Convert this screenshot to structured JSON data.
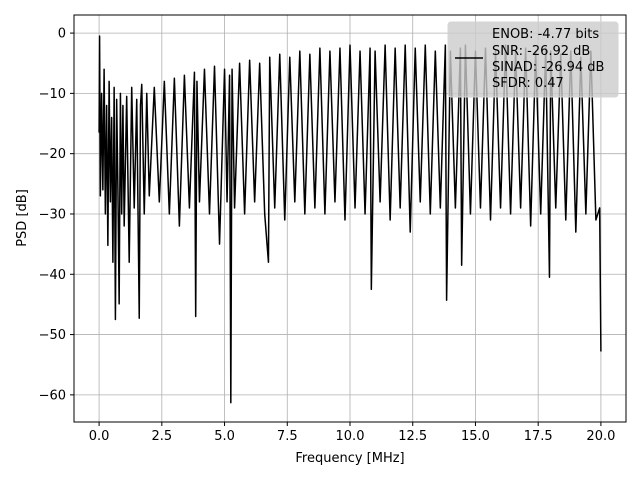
{
  "chart_data": {
    "type": "line",
    "title": "",
    "xlabel": "Frequency [MHz]",
    "ylabel": "PSD [dB]",
    "xlim": [
      -1.0,
      21.0
    ],
    "ylim": [
      -64.5,
      3.0
    ],
    "xticks": [
      0.0,
      2.5,
      5.0,
      7.5,
      10.0,
      12.5,
      15.0,
      17.5,
      20.0
    ],
    "xtick_labels": [
      "0.0",
      "2.5",
      "5.0",
      "7.5",
      "10.0",
      "12.5",
      "15.0",
      "17.5",
      "20.0"
    ],
    "yticks": [
      0,
      -10,
      -20,
      -30,
      -40,
      -50,
      -60
    ],
    "ytick_labels": [
      "0",
      "−10",
      "−20",
      "−30",
      "−40",
      "−50",
      "−60"
    ],
    "grid": true,
    "legend_position": "top-right",
    "legend_lines": [
      "ENOB: -4.77 bits",
      "SNR: -26.92 dB",
      "SINAD: -26.94 dB",
      "SFDR: 0.47"
    ],
    "series": [
      {
        "color": "#000000",
        "x": [
          0.0,
          0.02,
          0.05,
          0.1,
          0.15,
          0.2,
          0.25,
          0.3,
          0.35,
          0.4,
          0.45,
          0.5,
          0.55,
          0.6,
          0.65,
          0.7,
          0.75,
          0.8,
          0.85,
          0.9,
          0.95,
          1.0,
          1.1,
          1.2,
          1.3,
          1.4,
          1.5,
          1.6,
          1.65,
          1.7,
          1.8,
          1.9,
          2.0,
          2.2,
          2.4,
          2.6,
          2.8,
          3.0,
          3.2,
          3.4,
          3.6,
          3.8,
          3.85,
          3.9,
          4.0,
          4.2,
          4.4,
          4.6,
          4.8,
          5.0,
          5.1,
          5.2,
          5.25,
          5.3,
          5.4,
          5.6,
          5.8,
          6.0,
          6.2,
          6.4,
          6.6,
          6.75,
          6.8,
          7.0,
          7.2,
          7.4,
          7.6,
          7.8,
          8.0,
          8.2,
          8.4,
          8.6,
          8.8,
          9.0,
          9.2,
          9.4,
          9.6,
          9.8,
          10.0,
          10.2,
          10.4,
          10.6,
          10.8,
          10.85,
          11.0,
          11.2,
          11.4,
          11.6,
          11.8,
          12.0,
          12.2,
          12.4,
          12.6,
          12.8,
          13.0,
          13.2,
          13.4,
          13.6,
          13.8,
          13.85,
          14.0,
          14.2,
          14.4,
          14.45,
          14.6,
          14.8,
          15.0,
          15.2,
          15.4,
          15.6,
          15.8,
          16.0,
          16.2,
          16.4,
          16.6,
          16.8,
          17.0,
          17.2,
          17.4,
          17.6,
          17.8,
          17.95,
          18.0,
          18.2,
          18.4,
          18.6,
          18.8,
          19.0,
          19.2,
          19.4,
          19.6,
          19.8,
          19.95,
          20.0
        ],
        "y": [
          -16.5,
          -0.5,
          -27.0,
          -10.0,
          -26.0,
          -6.0,
          -30.0,
          -12.0,
          -35.2,
          -8.0,
          -28.0,
          -14.0,
          -38.0,
          -9.0,
          -47.5,
          -11.0,
          -26.0,
          -44.9,
          -10.0,
          -30.0,
          -12.0,
          -32.0,
          -10.5,
          -38.0,
          -9.0,
          -29.0,
          -11.0,
          -47.3,
          -12.0,
          -8.5,
          -30.0,
          -10.0,
          -27.0,
          -9.0,
          -28.0,
          -8.0,
          -30.0,
          -7.5,
          -32.0,
          -7.0,
          -29.0,
          -6.5,
          -47.0,
          -8.0,
          -28.0,
          -6.0,
          -30.0,
          -5.5,
          -35.0,
          -6.0,
          -28.0,
          -7.0,
          -61.3,
          -6.0,
          -29.0,
          -5.0,
          -30.0,
          -4.5,
          -28.0,
          -5.0,
          -30.0,
          -38.0,
          -4.0,
          -29.0,
          -3.5,
          -31.0,
          -4.0,
          -28.0,
          -3.0,
          -30.0,
          -3.5,
          -29.0,
          -2.5,
          -30.0,
          -3.0,
          -28.0,
          -2.5,
          -31.0,
          -2.0,
          -29.0,
          -3.0,
          -30.0,
          -2.5,
          -42.5,
          -3.0,
          -28.0,
          -2.0,
          -31.0,
          -2.5,
          -29.0,
          -2.0,
          -33.0,
          -2.5,
          -28.0,
          -2.0,
          -30.0,
          -3.0,
          -29.0,
          -2.0,
          -44.3,
          -3.0,
          -29.0,
          -2.5,
          -38.5,
          -2.0,
          -30.0,
          -3.0,
          -29.0,
          -2.5,
          -31.0,
          -3.0,
          -29.0,
          -2.0,
          -30.0,
          -3.0,
          -29.0,
          -2.5,
          -32.0,
          -3.0,
          -30.0,
          -2.5,
          -40.5,
          -3.0,
          -29.0,
          -3.5,
          -31.0,
          -3.0,
          -33.0,
          -4.0,
          -30.0,
          -3.0,
          -31.0,
          -29.0,
          -52.8
        ]
      }
    ]
  }
}
